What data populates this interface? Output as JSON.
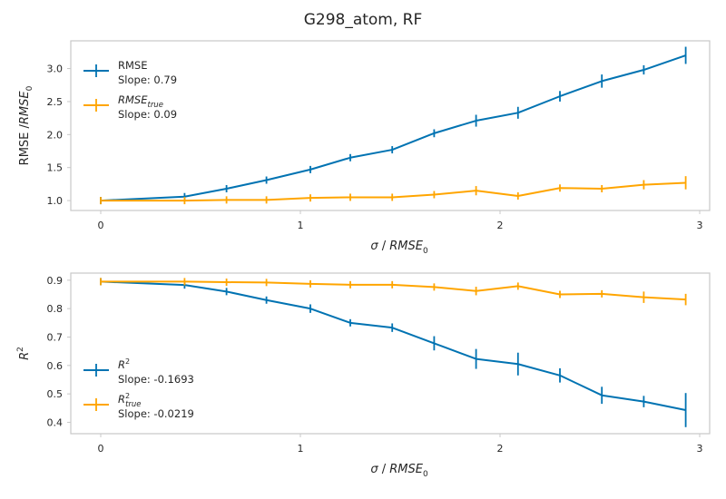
{
  "title": "G298_atom, RF",
  "colors": {
    "blue": "#0173b2",
    "orange": "#ffa500"
  },
  "chart_data": [
    {
      "type": "line",
      "xlabel": "σ / RMSE₀",
      "ylabel": "RMSE /RMSE₀",
      "xlim": [
        -0.15,
        3.05
      ],
      "ylim": [
        0.85,
        3.42
      ],
      "xticks": [
        0,
        1,
        2,
        3
      ],
      "yticks": [
        1.0,
        1.5,
        2.0,
        2.5,
        3.0
      ],
      "legend_position": "upper-left",
      "series": [
        {
          "name": "RMSE",
          "name_main": "RMSE",
          "name_sub": "",
          "slope_label": "Slope: 0.79",
          "color": "#0173b2",
          "x": [
            0,
            0.42,
            0.63,
            0.83,
            1.05,
            1.25,
            1.46,
            1.67,
            1.88,
            2.09,
            2.3,
            2.51,
            2.72,
            2.93
          ],
          "y": [
            1.0,
            1.06,
            1.18,
            1.31,
            1.47,
            1.65,
            1.77,
            2.02,
            2.21,
            2.33,
            2.58,
            2.81,
            2.98,
            3.2
          ],
          "err": [
            0.01,
            0.02,
            0.03,
            0.03,
            0.05,
            0.04,
            0.04,
            0.06,
            0.09,
            0.09,
            0.08,
            0.1,
            0.07,
            0.13
          ]
        },
        {
          "name": "RMSE_true",
          "name_main": "RMSE",
          "name_sub": "true",
          "slope_label": "Slope: 0.09",
          "color": "#ffa500",
          "x": [
            0,
            0.42,
            0.63,
            0.83,
            1.05,
            1.25,
            1.46,
            1.67,
            1.88,
            2.09,
            2.3,
            2.51,
            2.72,
            2.93
          ],
          "y": [
            1.0,
            1.0,
            1.01,
            1.01,
            1.04,
            1.05,
            1.05,
            1.09,
            1.15,
            1.07,
            1.19,
            1.18,
            1.24,
            1.27
          ],
          "err": [
            0.01,
            0.01,
            0.01,
            0.02,
            0.02,
            0.02,
            0.02,
            0.05,
            0.07,
            0.0,
            0.03,
            0.04,
            0.07,
            0.1
          ]
        }
      ]
    },
    {
      "type": "line",
      "xlabel": "σ / RMSE₀",
      "ylabel": "R²",
      "xlim": [
        -0.15,
        3.05
      ],
      "ylim": [
        0.36,
        0.925
      ],
      "xticks": [
        0,
        1,
        2,
        3
      ],
      "yticks": [
        0.4,
        0.5,
        0.6,
        0.7,
        0.8,
        0.9
      ],
      "legend_position": "lower-left",
      "series": [
        {
          "name": "R^2",
          "name_main": "R",
          "name_sup": "2",
          "name_sub": "",
          "slope_label": "Slope: -0.1693",
          "color": "#0173b2",
          "x": [
            0,
            0.42,
            0.63,
            0.83,
            1.05,
            1.25,
            1.46,
            1.67,
            1.88,
            2.09,
            2.3,
            2.51,
            2.72,
            2.93
          ],
          "y": [
            0.895,
            0.883,
            0.86,
            0.83,
            0.8,
            0.75,
            0.733,
            0.678,
            0.623,
            0.605,
            0.565,
            0.495,
            0.473,
            0.443
          ],
          "err": [
            0.003,
            0.01,
            0.008,
            0.005,
            0.015,
            0.01,
            0.015,
            0.025,
            0.035,
            0.04,
            0.025,
            0.03,
            0.02,
            0.06
          ]
        },
        {
          "name": "R^2_true",
          "name_main": "R",
          "name_sup": "2",
          "name_sub": "true",
          "slope_label": "Slope: -0.0219",
          "color": "#ffa500",
          "x": [
            0,
            0.42,
            0.63,
            0.83,
            1.05,
            1.25,
            1.46,
            1.67,
            1.88,
            2.09,
            2.3,
            2.51,
            2.72,
            2.93
          ],
          "y": [
            0.895,
            0.895,
            0.893,
            0.892,
            0.887,
            0.884,
            0.884,
            0.876,
            0.862,
            0.879,
            0.85,
            0.852,
            0.84,
            0.832
          ],
          "err": [
            0.003,
            0.003,
            0.003,
            0.003,
            0.005,
            0.005,
            0.005,
            0.008,
            0.015,
            0.0,
            0.008,
            0.01,
            0.02,
            0.02
          ]
        }
      ]
    }
  ]
}
